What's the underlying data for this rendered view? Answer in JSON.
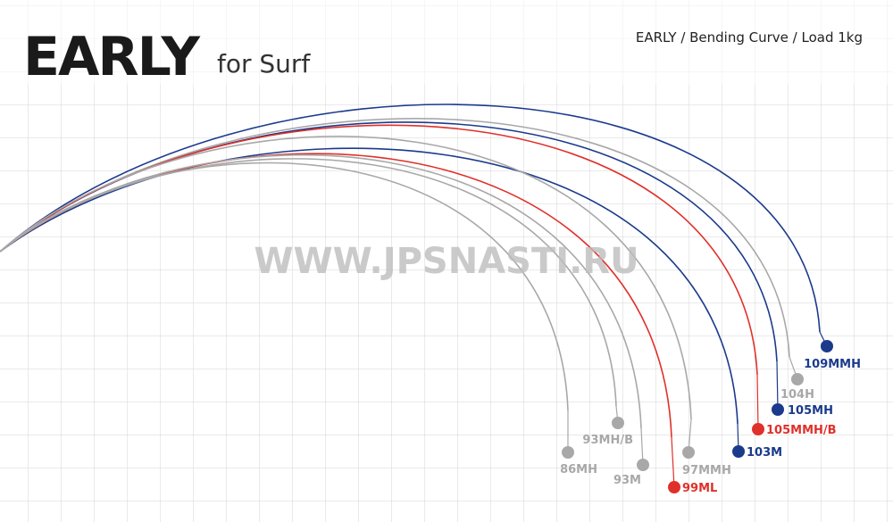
{
  "header": {
    "title": "EARLY",
    "subtitle": "for Surf",
    "caption": "EARLY / Bending Curve / Load 1kg"
  },
  "watermark": "WWW.JPSNASTI.RU",
  "curves": [
    {
      "label": "109MMH",
      "color": "#1a3a8c"
    },
    {
      "label": "104H",
      "color": "#a8a8a8"
    },
    {
      "label": "105MH",
      "color": "#1a3a8c"
    },
    {
      "label": "105MMH/B",
      "color": "#e0302a"
    },
    {
      "label": "103M",
      "color": "#1a3a8c"
    },
    {
      "label": "97MMH",
      "color": "#a8a8a8"
    },
    {
      "label": "99ML",
      "color": "#e0302a"
    },
    {
      "label": "93M",
      "color": "#a8a8a8"
    },
    {
      "label": "93MH/B",
      "color": "#a8a8a8"
    },
    {
      "label": "86MH",
      "color": "#a8a8a8"
    }
  ]
}
